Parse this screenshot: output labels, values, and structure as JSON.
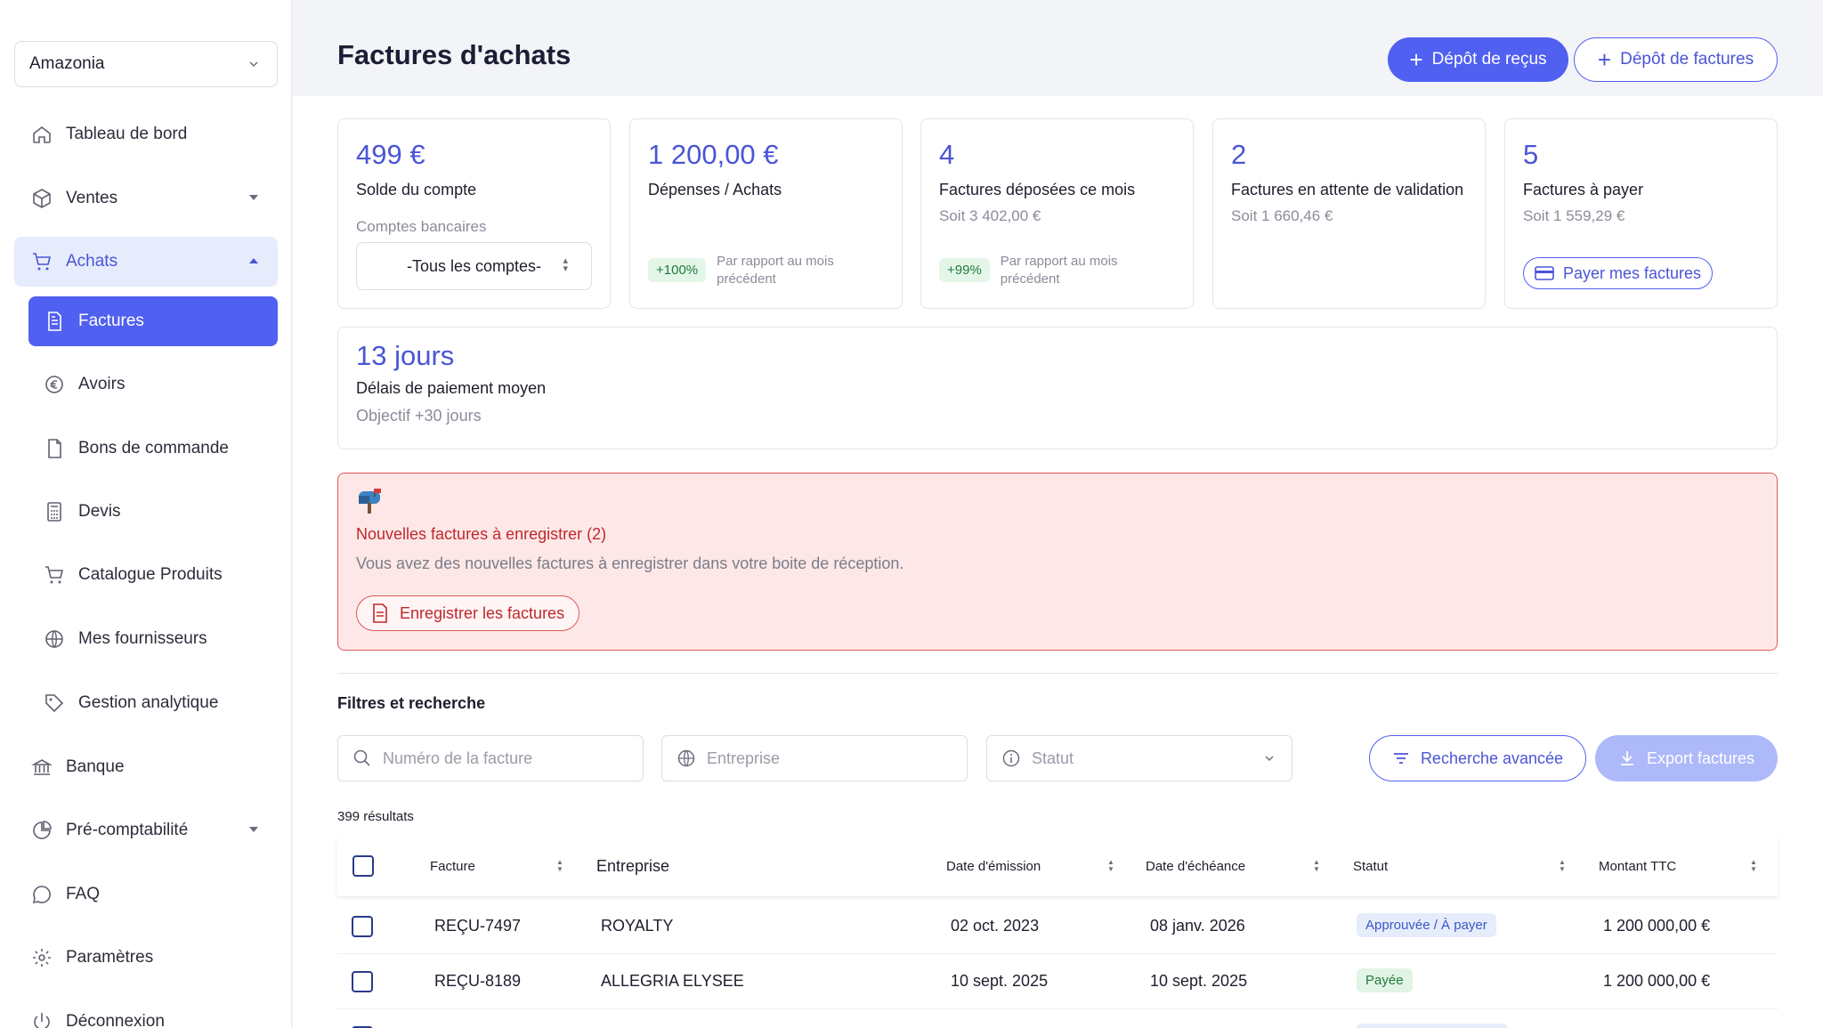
{
  "org": {
    "name": "Amazonia"
  },
  "sidebar": {
    "items": [
      {
        "label": "Tableau de bord",
        "icon": "home-icon"
      },
      {
        "label": "Ventes",
        "icon": "box-icon"
      },
      {
        "label": "Achats",
        "icon": "cart-icon"
      },
      {
        "label": "Factures",
        "icon": "invoice-icon"
      },
      {
        "label": "Avoirs",
        "icon": "euro-circle-icon"
      },
      {
        "label": "Bons de commande",
        "icon": "document-icon"
      },
      {
        "label": "Devis",
        "icon": "calculator-icon"
      },
      {
        "label": "Catalogue Produits",
        "icon": "cart-icon"
      },
      {
        "label": "Mes fournisseurs",
        "icon": "globe-icon"
      },
      {
        "label": "Gestion analytique",
        "icon": "tag-icon"
      },
      {
        "label": "Banque",
        "icon": "bank-icon"
      },
      {
        "label": "Pré-comptabilité",
        "icon": "pie-chart-icon"
      },
      {
        "label": "FAQ",
        "icon": "chat-icon"
      },
      {
        "label": "Paramètres",
        "icon": "gear-icon"
      },
      {
        "label": "Déconnexion",
        "icon": "power-icon"
      }
    ]
  },
  "header": {
    "title": "Factures d'achats",
    "btn_receipts": "Dépôt de reçus",
    "btn_invoices": "Dépôt de factures"
  },
  "cards": {
    "balance": {
      "value": "499 €",
      "label": "Solde du compte",
      "accounts_label": "Comptes bancaires",
      "accounts_select": "-Tous les comptes-"
    },
    "spending": {
      "value": "1 200,00 €",
      "label": "Dépenses / Achats",
      "delta": "+100%",
      "compare": "Par rapport au mois précédent"
    },
    "deposited": {
      "value": "4",
      "label": "Factures déposées ce mois",
      "sub": "Soit 3 402,00 €",
      "delta": "+99%",
      "compare": "Par rapport au mois précédent"
    },
    "pending": {
      "value": "2",
      "label": "Factures en attente de validation",
      "sub": "Soit 1 660,46 €"
    },
    "to_pay": {
      "value": "5",
      "label": "Factures à payer",
      "sub": "Soit 1 559,29 €",
      "button": "Payer mes factures"
    },
    "delay": {
      "value": "13 jours",
      "label": "Délais de paiement moyen",
      "sub": "Objectif +30 jours"
    }
  },
  "alert": {
    "title": "Nouvelles factures à enregistrer (2)",
    "desc": "Vous avez des nouvelles factures à enregistrer dans votre boite de réception.",
    "button": "Enregistrer les factures"
  },
  "filters": {
    "title": "Filtres et recherche",
    "invoice_placeholder": "Numéro de la facture",
    "company_placeholder": "Entreprise",
    "status_placeholder": "Statut",
    "advanced": "Recherche avancée",
    "export": "Export factures",
    "results": "399 résultats"
  },
  "table": {
    "headers": [
      "Facture",
      "Entreprise",
      "Date d'émission",
      "Date d'échéance",
      "Statut",
      "Montant TTC"
    ],
    "rows": [
      {
        "invoice": "REÇU-7497",
        "company": "ROYALTY",
        "issued": "02 oct. 2023",
        "due": "08 janv. 2026",
        "status": "Approuvée / À payer",
        "amount": "1 200 000,00 €"
      },
      {
        "invoice": "REÇU-8189",
        "company": "ALLEGRIA ELYSEE",
        "issued": "10 sept. 2025",
        "due": "10 sept. 2025",
        "status": "Payée",
        "amount": "1 200 000,00 €"
      }
    ]
  },
  "colors": {
    "accent": "#5060f0",
    "alert_bg": "#fde8e7",
    "alert_border": "#e25757",
    "success": "#1f7a3a"
  }
}
